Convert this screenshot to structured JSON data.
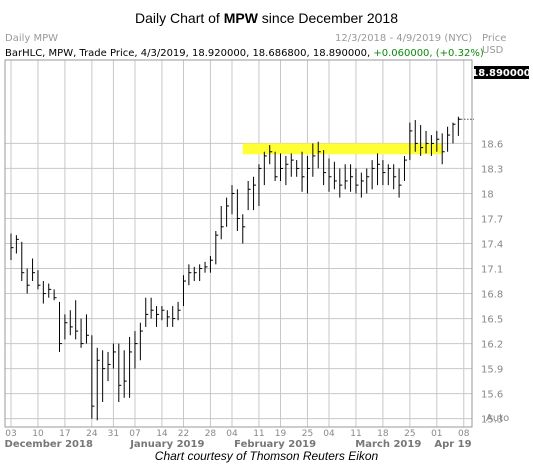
{
  "header": {
    "title_prefix": "Daily Chart of ",
    "title_ticker": "MPW",
    "title_suffix": " since December 2018",
    "left_label": "Daily MPW",
    "date_range": "12/3/2018 - 4/9/2019 (NYC)",
    "axis_label_1": "Price",
    "axis_label_2": "USD"
  },
  "infobar": {
    "text": "BarHLC, MPW, Trade Price, 4/3/2019, 18.920000, 18.686800, 18.890000, ",
    "change": "+0.060000, (+0.32%)"
  },
  "last_price": "18.890000",
  "auto_label": "Auto",
  "caption": "Chart courtesy of Thomson Reuters Eikon",
  "colors": {
    "grid": "#c8c8c8",
    "bar": "#000000",
    "highlight": "#ffff33",
    "last_price_bg": "#000000"
  },
  "chart_data": {
    "type": "bar",
    "style": "BarHLC",
    "ylim": [
      15.2,
      19.6
    ],
    "y_ticks": [
      "18.6",
      "18.3",
      "18",
      "17.7",
      "17.4",
      "17.1",
      "16.8",
      "16.5",
      "16.2",
      "15.9",
      "15.6",
      "15.3"
    ],
    "y_tick_values": [
      18.6,
      18.3,
      18.0,
      17.7,
      17.4,
      17.1,
      16.8,
      16.5,
      16.2,
      15.9,
      15.6,
      15.3
    ],
    "x_ticks": [
      "03",
      "10",
      "17",
      "24",
      "31",
      "07",
      "14",
      "22",
      "28",
      "04",
      "11",
      "19",
      "25",
      "04",
      "11",
      "18",
      "25",
      "01",
      "08"
    ],
    "x_tick_index": [
      0,
      5,
      10,
      15,
      19,
      23,
      28,
      32,
      37,
      41,
      46,
      50,
      55,
      59,
      64,
      69,
      74,
      79,
      84
    ],
    "month_labels": [
      "December 2018",
      "January 2019",
      "February 2019",
      "March 2019",
      "Apr 19"
    ],
    "month_label_index": [
      7,
      29,
      49,
      70,
      82
    ],
    "highlight_band": {
      "y_low": 18.47,
      "y_high": 18.6,
      "x_start_index": 43,
      "x_end_index": 80
    },
    "last_value": 18.89,
    "bars": [
      {
        "h": 17.52,
        "l": 17.2,
        "c": 17.35
      },
      {
        "h": 17.5,
        "l": 17.28,
        "c": 17.45
      },
      {
        "h": 17.42,
        "l": 16.95,
        "c": 17.05
      },
      {
        "h": 17.1,
        "l": 16.8,
        "c": 16.9
      },
      {
        "h": 17.22,
        "l": 16.95,
        "c": 17.05
      },
      {
        "h": 17.08,
        "l": 16.85,
        "c": 16.9
      },
      {
        "h": 16.95,
        "l": 16.68,
        "c": 16.8
      },
      {
        "h": 16.92,
        "l": 16.75,
        "c": 16.85
      },
      {
        "h": 16.85,
        "l": 16.72,
        "c": 16.75
      },
      {
        "h": 16.7,
        "l": 16.1,
        "c": 16.2
      },
      {
        "h": 16.55,
        "l": 16.25,
        "c": 16.45
      },
      {
        "h": 16.6,
        "l": 16.3,
        "c": 16.4
      },
      {
        "h": 16.72,
        "l": 16.25,
        "c": 16.35
      },
      {
        "h": 16.5,
        "l": 16.15,
        "c": 16.2
      },
      {
        "h": 16.55,
        "l": 16.2,
        "c": 16.3
      },
      {
        "h": 16.3,
        "l": 15.3,
        "c": 15.45
      },
      {
        "h": 16.15,
        "l": 15.28,
        "c": 16.0
      },
      {
        "h": 16.12,
        "l": 15.5,
        "c": 15.9
      },
      {
        "h": 16.1,
        "l": 15.75,
        "c": 15.95
      },
      {
        "h": 16.2,
        "l": 15.9,
        "c": 16.1
      },
      {
        "h": 16.2,
        "l": 15.5,
        "c": 15.7
      },
      {
        "h": 16.12,
        "l": 15.55,
        "c": 15.75
      },
      {
        "h": 16.28,
        "l": 15.55,
        "c": 16.1
      },
      {
        "h": 16.35,
        "l": 15.9,
        "c": 16.2
      },
      {
        "h": 16.45,
        "l": 16.0,
        "c": 16.35
      },
      {
        "h": 16.75,
        "l": 16.4,
        "c": 16.55
      },
      {
        "h": 16.75,
        "l": 16.5,
        "c": 16.6
      },
      {
        "h": 16.65,
        "l": 16.4,
        "c": 16.55
      },
      {
        "h": 16.65,
        "l": 16.48,
        "c": 16.6
      },
      {
        "h": 16.6,
        "l": 16.4,
        "c": 16.52
      },
      {
        "h": 16.65,
        "l": 16.4,
        "c": 16.5
      },
      {
        "h": 16.7,
        "l": 16.48,
        "c": 16.6
      },
      {
        "h": 17.02,
        "l": 16.65,
        "c": 16.95
      },
      {
        "h": 17.15,
        "l": 16.9,
        "c": 17.05
      },
      {
        "h": 17.12,
        "l": 16.95,
        "c": 17.05
      },
      {
        "h": 17.15,
        "l": 16.95,
        "c": 17.1
      },
      {
        "h": 17.18,
        "l": 17.05,
        "c": 17.12
      },
      {
        "h": 17.25,
        "l": 17.05,
        "c": 17.2
      },
      {
        "h": 17.55,
        "l": 17.15,
        "c": 17.5
      },
      {
        "h": 17.85,
        "l": 17.45,
        "c": 17.6
      },
      {
        "h": 17.95,
        "l": 17.6,
        "c": 17.85
      },
      {
        "h": 18.1,
        "l": 17.75,
        "c": 18.0
      },
      {
        "h": 18.05,
        "l": 17.55,
        "c": 17.7
      },
      {
        "h": 17.75,
        "l": 17.4,
        "c": 17.6
      },
      {
        "h": 18.15,
        "l": 17.8,
        "c": 18.05
      },
      {
        "h": 18.2,
        "l": 17.8,
        "c": 18.1
      },
      {
        "h": 18.35,
        "l": 17.85,
        "c": 18.3
      },
      {
        "h": 18.5,
        "l": 18.1,
        "c": 18.45
      },
      {
        "h": 18.58,
        "l": 18.35,
        "c": 18.5
      },
      {
        "h": 18.5,
        "l": 18.15,
        "c": 18.2
      },
      {
        "h": 18.48,
        "l": 18.15,
        "c": 18.3
      },
      {
        "h": 18.45,
        "l": 18.1,
        "c": 18.35
      },
      {
        "h": 18.48,
        "l": 18.2,
        "c": 18.4
      },
      {
        "h": 18.4,
        "l": 18.2,
        "c": 18.3
      },
      {
        "h": 18.5,
        "l": 18.02,
        "c": 18.2
      },
      {
        "h": 18.45,
        "l": 18.0,
        "c": 18.3
      },
      {
        "h": 18.6,
        "l": 18.2,
        "c": 18.45
      },
      {
        "h": 18.62,
        "l": 18.3,
        "c": 18.5
      },
      {
        "h": 18.52,
        "l": 18.1,
        "c": 18.25
      },
      {
        "h": 18.42,
        "l": 18.02,
        "c": 18.2
      },
      {
        "h": 18.38,
        "l": 18.05,
        "c": 18.15
      },
      {
        "h": 18.3,
        "l": 17.95,
        "c": 18.1
      },
      {
        "h": 18.35,
        "l": 18.05,
        "c": 18.15
      },
      {
        "h": 18.35,
        "l": 18.02,
        "c": 18.2
      },
      {
        "h": 18.3,
        "l": 18.0,
        "c": 18.1
      },
      {
        "h": 18.25,
        "l": 17.95,
        "c": 18.15
      },
      {
        "h": 18.3,
        "l": 18.0,
        "c": 18.2
      },
      {
        "h": 18.4,
        "l": 18.05,
        "c": 18.3
      },
      {
        "h": 18.48,
        "l": 18.1,
        "c": 18.35
      },
      {
        "h": 18.4,
        "l": 18.1,
        "c": 18.25
      },
      {
        "h": 18.35,
        "l": 18.1,
        "c": 18.3
      },
      {
        "h": 18.35,
        "l": 18.05,
        "c": 18.2
      },
      {
        "h": 18.3,
        "l": 17.95,
        "c": 18.1
      },
      {
        "h": 18.45,
        "l": 18.15,
        "c": 18.4
      },
      {
        "h": 18.85,
        "l": 18.4,
        "c": 18.75
      },
      {
        "h": 18.88,
        "l": 18.5,
        "c": 18.6
      },
      {
        "h": 18.82,
        "l": 18.45,
        "c": 18.55
      },
      {
        "h": 18.75,
        "l": 18.48,
        "c": 18.6
      },
      {
        "h": 18.7,
        "l": 18.45,
        "c": 18.6
      },
      {
        "h": 18.75,
        "l": 18.5,
        "c": 18.65
      },
      {
        "h": 18.72,
        "l": 18.35,
        "c": 18.5
      },
      {
        "h": 18.8,
        "l": 18.5,
        "c": 18.7
      },
      {
        "h": 18.85,
        "l": 18.6,
        "c": 18.83
      },
      {
        "h": 18.92,
        "l": 18.69,
        "c": 18.89
      }
    ]
  }
}
